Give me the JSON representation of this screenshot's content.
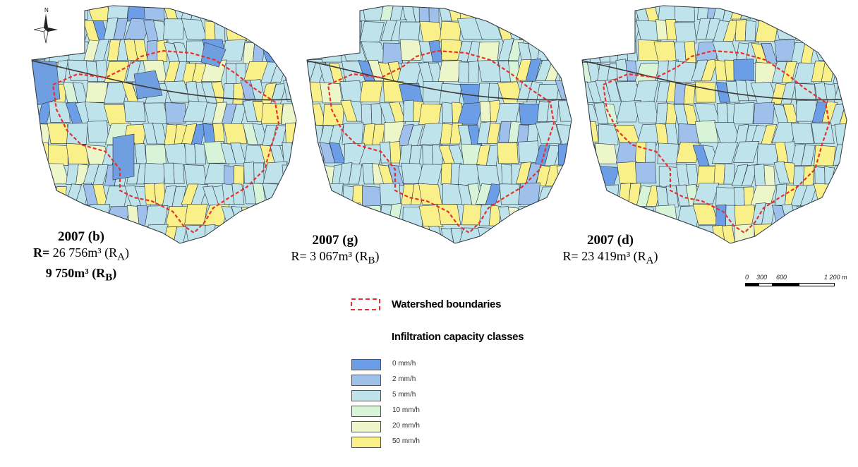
{
  "north_arrow": {
    "letter": "N"
  },
  "maps": [
    {
      "id": "b",
      "title": "2007 (b)",
      "line1_prefix": "R= ",
      "line1_value": "26 756m³ (R",
      "line1_sub": "A",
      "line2_value": "9 750m³ (R",
      "line2_sub": "B",
      "highlight_color": "#6f9fe0"
    },
    {
      "id": "g",
      "title": "2007 (g)",
      "line1_prefix": "R= ",
      "line1_value": "3 067m³ (R",
      "line1_sub": "B"
    },
    {
      "id": "d",
      "title": "2007 (d)",
      "line1_prefix": "R= ",
      "line1_value": "23 419m³ (R",
      "line1_sub": "A"
    }
  ],
  "scale_bar": {
    "labels": [
      "0",
      "300",
      "600",
      "1 200 m"
    ]
  },
  "legend": {
    "boundary_label": "Watershed boundaries",
    "classes_title": "Infiltration capacity classes",
    "classes": [
      {
        "label": "0 mm/h",
        "color": "#6b9ee6"
      },
      {
        "label": "2 mm/h",
        "color": "#9fc0ea"
      },
      {
        "label": "5 mm/h",
        "color": "#bfe3ea"
      },
      {
        "label": "10 mm/h",
        "color": "#d8f4d8"
      },
      {
        "label": "20 mm/h",
        "color": "#edf6c8"
      },
      {
        "label": "50 mm/h",
        "color": "#f9f08a"
      }
    ]
  },
  "colors": {
    "boundary": "#e8302a",
    "parcel_outline": "#2a3440",
    "road": "#3a3a3a"
  }
}
